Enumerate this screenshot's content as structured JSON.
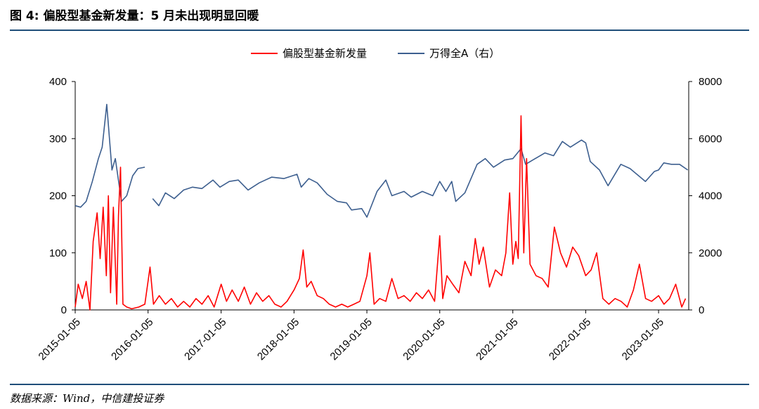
{
  "header": {
    "title": "图 4:  偏股型基金新发量：5 月未出现明显回暖"
  },
  "footer": {
    "source": "数据来源：Wind，中信建投证券"
  },
  "chart_data": {
    "type": "line",
    "title": "",
    "xlabel": "",
    "ylabel_left": "",
    "ylabel_right": "",
    "x_ticks": [
      "2015-01-05",
      "2016-01-05",
      "2017-01-05",
      "2018-01-05",
      "2019-01-05",
      "2020-01-05",
      "2021-01-05",
      "2022-01-05",
      "2023-01-05"
    ],
    "y_left": {
      "min": 0,
      "max": 400,
      "ticks": [
        0,
        100,
        200,
        300,
        400
      ]
    },
    "y_right": {
      "min": 0,
      "max": 8000,
      "ticks": [
        0,
        2000,
        4000,
        6000,
        8000
      ]
    },
    "legend": "top-center",
    "grid": false,
    "series": [
      {
        "name": "偏股型基金新发量",
        "axis": "left",
        "color": "#ff0000",
        "points": [
          [
            "2015-01-05",
            5
          ],
          [
            "2015-01-20",
            45
          ],
          [
            "2015-02-10",
            20
          ],
          [
            "2015-03-01",
            50
          ],
          [
            "2015-03-20",
            0
          ],
          [
            "2015-04-05",
            120
          ],
          [
            "2015-04-25",
            170
          ],
          [
            "2015-05-10",
            90
          ],
          [
            "2015-05-25",
            180
          ],
          [
            "2015-06-10",
            60
          ],
          [
            "2015-06-20",
            200
          ],
          [
            "2015-07-01",
            30
          ],
          [
            "2015-07-15",
            180
          ],
          [
            "2015-08-01",
            10
          ],
          [
            "2015-08-10",
            165
          ],
          [
            "2015-08-20",
            250
          ],
          [
            "2015-09-01",
            10
          ],
          [
            "2015-09-20",
            5
          ],
          [
            "2015-10-15",
            2
          ],
          [
            "2015-11-20",
            5
          ],
          [
            "2015-12-20",
            10
          ],
          [
            "2016-01-15",
            75
          ],
          [
            "2016-02-01",
            10
          ],
          [
            "2016-03-01",
            25
          ],
          [
            "2016-04-01",
            10
          ],
          [
            "2016-05-01",
            20
          ],
          [
            "2016-06-01",
            5
          ],
          [
            "2016-07-01",
            15
          ],
          [
            "2016-08-01",
            5
          ],
          [
            "2016-09-01",
            20
          ],
          [
            "2016-10-01",
            10
          ],
          [
            "2016-11-01",
            25
          ],
          [
            "2016-12-01",
            5
          ],
          [
            "2017-01-05",
            45
          ],
          [
            "2017-02-01",
            15
          ],
          [
            "2017-03-01",
            35
          ],
          [
            "2017-04-01",
            15
          ],
          [
            "2017-05-01",
            40
          ],
          [
            "2017-06-01",
            10
          ],
          [
            "2017-07-01",
            30
          ],
          [
            "2017-08-01",
            15
          ],
          [
            "2017-09-01",
            25
          ],
          [
            "2017-10-01",
            10
          ],
          [
            "2017-11-01",
            5
          ],
          [
            "2017-12-01",
            15
          ],
          [
            "2018-01-05",
            35
          ],
          [
            "2018-02-01",
            55
          ],
          [
            "2018-02-20",
            105
          ],
          [
            "2018-03-10",
            40
          ],
          [
            "2018-04-01",
            50
          ],
          [
            "2018-05-01",
            25
          ],
          [
            "2018-06-01",
            20
          ],
          [
            "2018-07-01",
            10
          ],
          [
            "2018-08-01",
            5
          ],
          [
            "2018-09-01",
            10
          ],
          [
            "2018-10-01",
            5
          ],
          [
            "2018-11-01",
            10
          ],
          [
            "2018-12-01",
            15
          ],
          [
            "2019-01-05",
            60
          ],
          [
            "2019-01-20",
            100
          ],
          [
            "2019-02-10",
            10
          ],
          [
            "2019-03-10",
            20
          ],
          [
            "2019-04-10",
            15
          ],
          [
            "2019-05-10",
            55
          ],
          [
            "2019-06-10",
            20
          ],
          [
            "2019-07-10",
            25
          ],
          [
            "2019-08-10",
            15
          ],
          [
            "2019-09-10",
            30
          ],
          [
            "2019-10-10",
            20
          ],
          [
            "2019-11-10",
            35
          ],
          [
            "2019-12-10",
            15
          ],
          [
            "2020-01-05",
            130
          ],
          [
            "2020-01-20",
            20
          ],
          [
            "2020-02-10",
            60
          ],
          [
            "2020-03-10",
            45
          ],
          [
            "2020-04-10",
            30
          ],
          [
            "2020-05-10",
            85
          ],
          [
            "2020-06-10",
            60
          ],
          [
            "2020-07-01",
            125
          ],
          [
            "2020-07-20",
            80
          ],
          [
            "2020-08-10",
            110
          ],
          [
            "2020-09-10",
            40
          ],
          [
            "2020-10-10",
            70
          ],
          [
            "2020-11-10",
            60
          ],
          [
            "2020-12-01",
            100
          ],
          [
            "2020-12-20",
            205
          ],
          [
            "2021-01-05",
            80
          ],
          [
            "2021-01-20",
            120
          ],
          [
            "2021-02-01",
            90
          ],
          [
            "2021-02-15",
            340
          ],
          [
            "2021-03-01",
            100
          ],
          [
            "2021-03-15",
            265
          ],
          [
            "2021-04-01",
            80
          ],
          [
            "2021-05-01",
            60
          ],
          [
            "2021-06-01",
            55
          ],
          [
            "2021-07-01",
            40
          ],
          [
            "2021-08-01",
            145
          ],
          [
            "2021-09-01",
            100
          ],
          [
            "2021-10-01",
            75
          ],
          [
            "2021-11-01",
            110
          ],
          [
            "2021-12-01",
            95
          ],
          [
            "2022-01-05",
            60
          ],
          [
            "2022-02-01",
            70
          ],
          [
            "2022-03-01",
            100
          ],
          [
            "2022-04-01",
            20
          ],
          [
            "2022-05-01",
            10
          ],
          [
            "2022-06-01",
            20
          ],
          [
            "2022-07-01",
            15
          ],
          [
            "2022-08-01",
            5
          ],
          [
            "2022-09-01",
            35
          ],
          [
            "2022-10-01",
            80
          ],
          [
            "2022-11-01",
            20
          ],
          [
            "2022-12-01",
            15
          ],
          [
            "2023-01-05",
            25
          ],
          [
            "2023-02-01",
            10
          ],
          [
            "2023-03-01",
            20
          ],
          [
            "2023-04-01",
            45
          ],
          [
            "2023-05-01",
            5
          ],
          [
            "2023-05-20",
            20
          ]
        ]
      },
      {
        "name": "万得全A（右）",
        "axis": "right",
        "color": "#3d5f8f",
        "points": [
          [
            "2015-01-05",
            3650
          ],
          [
            "2015-02-01",
            3600
          ],
          [
            "2015-03-01",
            3800
          ],
          [
            "2015-04-01",
            4500
          ],
          [
            "2015-05-01",
            5300
          ],
          [
            "2015-05-20",
            5700
          ],
          [
            "2015-06-12",
            7200
          ],
          [
            "2015-07-08",
            4900
          ],
          [
            "2015-07-25",
            5300
          ],
          [
            "2015-08-25",
            3800
          ],
          [
            "2015-09-20",
            4000
          ],
          [
            "2015-10-20",
            4700
          ],
          [
            "2015-11-15",
            4950
          ],
          [
            "2015-12-20",
            5000
          ],
          [
            "2016-01-05",
            null
          ],
          [
            "2016-01-28",
            3900
          ],
          [
            "2016-02-28",
            3650
          ],
          [
            "2016-04-01",
            4100
          ],
          [
            "2016-05-15",
            3900
          ],
          [
            "2016-07-01",
            4200
          ],
          [
            "2016-08-15",
            4300
          ],
          [
            "2016-10-01",
            4250
          ],
          [
            "2016-11-25",
            4550
          ],
          [
            "2016-12-30",
            4300
          ],
          [
            "2017-02-15",
            4500
          ],
          [
            "2017-04-01",
            4550
          ],
          [
            "2017-05-20",
            4200
          ],
          [
            "2017-07-15",
            4450
          ],
          [
            "2017-09-15",
            4650
          ],
          [
            "2017-11-15",
            4600
          ],
          [
            "2018-01-20",
            4750
          ],
          [
            "2018-02-10",
            4300
          ],
          [
            "2018-03-20",
            4600
          ],
          [
            "2018-05-01",
            4450
          ],
          [
            "2018-06-20",
            4050
          ],
          [
            "2018-08-10",
            3800
          ],
          [
            "2018-09-25",
            3750
          ],
          [
            "2018-10-20",
            3500
          ],
          [
            "2018-12-10",
            3550
          ],
          [
            "2019-01-05",
            3250
          ],
          [
            "2019-02-25",
            4150
          ],
          [
            "2019-04-10",
            4550
          ],
          [
            "2019-05-10",
            4000
          ],
          [
            "2019-07-10",
            4150
          ],
          [
            "2019-08-15",
            3950
          ],
          [
            "2019-10-10",
            4150
          ],
          [
            "2019-12-01",
            4000
          ],
          [
            "2020-01-05",
            4500
          ],
          [
            "2020-02-05",
            4150
          ],
          [
            "2020-03-05",
            4500
          ],
          [
            "2020-03-25",
            3800
          ],
          [
            "2020-05-10",
            4100
          ],
          [
            "2020-07-10",
            5100
          ],
          [
            "2020-08-20",
            5300
          ],
          [
            "2020-09-30",
            5000
          ],
          [
            "2020-11-25",
            5250
          ],
          [
            "2021-01-05",
            5300
          ],
          [
            "2021-02-15",
            5650
          ],
          [
            "2021-03-10",
            5100
          ],
          [
            "2021-04-15",
            5250
          ],
          [
            "2021-06-15",
            5500
          ],
          [
            "2021-07-28",
            5400
          ],
          [
            "2021-09-10",
            5900
          ],
          [
            "2021-10-20",
            5700
          ],
          [
            "2021-12-15",
            5950
          ],
          [
            "2022-01-05",
            5850
          ],
          [
            "2022-01-28",
            5200
          ],
          [
            "2022-03-15",
            4900
          ],
          [
            "2022-04-27",
            4350
          ],
          [
            "2022-06-30",
            5100
          ],
          [
            "2022-08-15",
            4950
          ],
          [
            "2022-10-31",
            4500
          ],
          [
            "2022-12-15",
            4850
          ],
          [
            "2023-01-05",
            4900
          ],
          [
            "2023-01-31",
            5150
          ],
          [
            "2023-03-10",
            5100
          ],
          [
            "2023-04-20",
            5100
          ],
          [
            "2023-05-31",
            4900
          ]
        ]
      }
    ]
  }
}
